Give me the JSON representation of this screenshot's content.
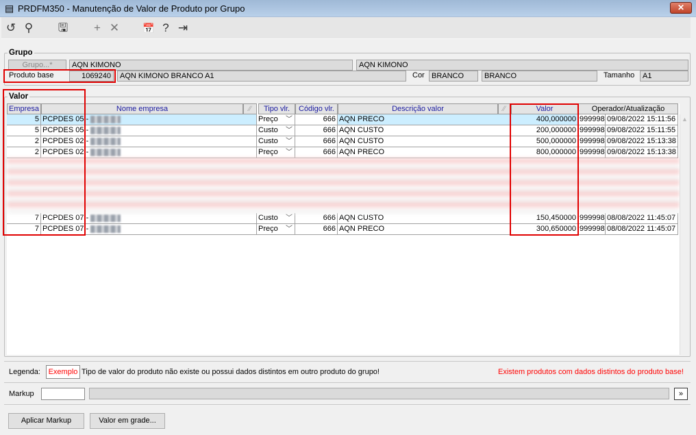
{
  "window": {
    "title": "PRDFM350 - Manutenção de Valor de Produto por Grupo",
    "close_icon": "close-icon"
  },
  "toolbar": {
    "icons": [
      "undo-icon",
      "search-icon",
      "save-icon",
      "add-icon",
      "delete-icon",
      "calendar-icon",
      "help-icon",
      "exit-icon"
    ]
  },
  "grupo": {
    "legend": "Grupo",
    "grupo_button": "Grupo...*",
    "grupo_value": "AQN KIMONO",
    "grupo_desc": "AQN KIMONO",
    "produto_base_label": "Produto base",
    "produto_base_code": "1069240",
    "produto_base_desc": "AQN KIMONO BRANCO A1",
    "cor_label": "Cor",
    "cor_code": "BRANCO",
    "cor_desc": "BRANCO",
    "tamanho_label": "Tamanho",
    "tamanho_value": "A1"
  },
  "valor": {
    "legend": "Valor",
    "columns": [
      "Empresa",
      "Nome empresa",
      "Tipo vlr.",
      "Código vlr.",
      "Descrição valor",
      "Valor",
      "Operador/Atualização"
    ],
    "rows": [
      {
        "empresa": "5",
        "nome": "PCPDES 05 -",
        "tipo": "Preço",
        "codigo": "666",
        "descricao": "AQN PRECO",
        "valor": "400,000000",
        "operador": "999998",
        "data": "09/08/2022 15:11:56",
        "selected": true
      },
      {
        "empresa": "5",
        "nome": "PCPDES 05 -",
        "tipo": "Custo",
        "codigo": "666",
        "descricao": "AQN CUSTO",
        "valor": "200,000000",
        "operador": "999998",
        "data": "09/08/2022 15:11:55"
      },
      {
        "empresa": "2",
        "nome": "PCPDES 02 -",
        "tipo": "Custo",
        "codigo": "666",
        "descricao": "AQN CUSTO",
        "valor": "500,000000",
        "operador": "999998",
        "data": "09/08/2022 15:13:38"
      },
      {
        "empresa": "2",
        "nome": "PCPDES 02 -",
        "tipo": "Preço",
        "codigo": "666",
        "descricao": "AQN PRECO",
        "valor": "800,000000",
        "operador": "999998",
        "data": "09/08/2022 15:13:38"
      },
      {
        "empresa": "7",
        "nome": "PCPDES 07 -",
        "tipo": "Custo",
        "codigo": "666",
        "descricao": "AQN CUSTO",
        "valor": "150,450000",
        "operador": "999998",
        "data": "08/08/2022 11:45:07"
      },
      {
        "empresa": "7",
        "nome": "PCPDES 07 -",
        "tipo": "Preço",
        "codigo": "666",
        "descricao": "AQN PRECO",
        "valor": "300,650000",
        "operador": "999998",
        "data": "08/08/2022 11:45:07"
      }
    ]
  },
  "legenda": {
    "label": "Legenda:",
    "example": "Exemplo",
    "text": "Tipo de valor do produto não existe ou possui dados distintos em outro produto do grupo!",
    "warning": "Existem produtos com dados distintos do produto base!",
    "warning_color": "#ff0000"
  },
  "markup": {
    "label": "Markup",
    "value": "",
    "arrow": "»"
  },
  "buttons": {
    "aplicar": "Aplicar Markup",
    "grade": "Valor em grade..."
  },
  "colors": {
    "selected_row": "#cceeff",
    "header_text": "#1a1aa0",
    "highlight": "#e00000"
  }
}
